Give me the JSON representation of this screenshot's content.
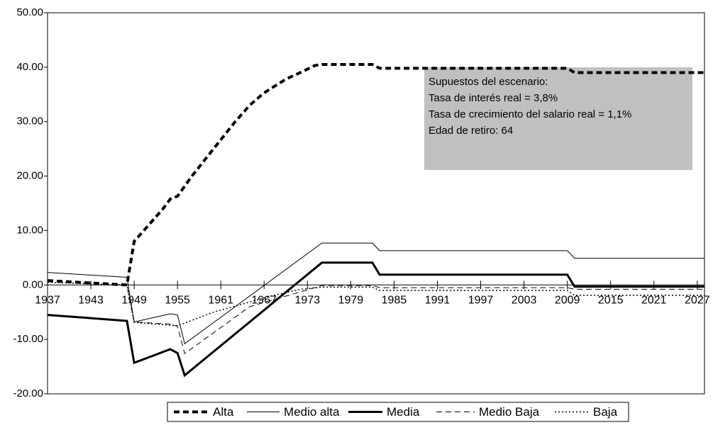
{
  "chart_data": {
    "type": "line",
    "xlim": [
      1937,
      2028
    ],
    "xticks": [
      1937,
      1943,
      1949,
      1955,
      1961,
      1967,
      1973,
      1979,
      1985,
      1991,
      1997,
      2003,
      2009,
      2015,
      2021,
      2027
    ],
    "ylim": [
      -20,
      50
    ],
    "yticks": [
      {
        "value": -20,
        "label": "-20.00"
      },
      {
        "value": -10,
        "label": "-10.00"
      },
      {
        "value": 0,
        "label": "0.00"
      },
      {
        "value": 10,
        "label": "10.00"
      },
      {
        "value": 20,
        "label": "20.00"
      },
      {
        "value": 30,
        "label": "30.00"
      },
      {
        "value": 40,
        "label": "40.00"
      },
      {
        "value": 50,
        "label": "50.00"
      }
    ],
    "annotation": [
      "Supuestos del escenario:",
      "Tasa de interés real  = 3,8%",
      "Tasa de crecimiento del salario real = 1,1%",
      "Edad de retiro: 64"
    ],
    "annotation_color": "#c0c0c0",
    "series": [
      {
        "name": "Alta",
        "color": "#000000",
        "line_style": "dashed",
        "line_width": 4,
        "x": [
          1937,
          1948,
          1949,
          1950,
          1953,
          1954,
          1955,
          1957,
          1960,
          1963,
          1965,
          1967,
          1970,
          1972,
          1974,
          1975,
          1982,
          1983,
          2009,
          2010,
          2028
        ],
        "values": [
          0.8,
          0,
          8,
          9.5,
          14,
          15.8,
          16.3,
          20,
          25,
          30,
          33,
          35.3,
          37.8,
          39,
          40.3,
          40.5,
          40.5,
          39.8,
          39.8,
          39,
          39
        ]
      },
      {
        "name": "Medio alta",
        "color": "#000000",
        "line_style": "solid",
        "line_width": 1,
        "x": [
          1937,
          1948,
          1949,
          1954,
          1955,
          1956,
          1975,
          1982,
          1983,
          2009,
          2010,
          2028
        ],
        "values": [
          2.3,
          1.4,
          -6.8,
          -5.3,
          -5.5,
          -10.8,
          7.7,
          7.7,
          6.3,
          6.3,
          4.9,
          4.9
        ]
      },
      {
        "name": "Media",
        "color": "#000000",
        "line_style": "solid",
        "line_width": 3,
        "x": [
          1937,
          1948,
          1949,
          1954,
          1955,
          1956,
          1975,
          1982,
          1983,
          2009,
          2010,
          2028
        ],
        "values": [
          -5.5,
          -6.6,
          -14.3,
          -11.8,
          -12.5,
          -16.6,
          4.1,
          4.1,
          1.9,
          1.9,
          -0.3,
          -0.3
        ]
      },
      {
        "name": "Medio Baja",
        "color": "#000000",
        "line_style": "dashed",
        "line_width": 1,
        "x": [
          1937,
          1948,
          1949,
          1954,
          1955,
          1956,
          1965,
          1975,
          1982,
          1983,
          2009,
          2010,
          2028
        ],
        "values": [
          0.6,
          -0.1,
          -6.8,
          -7.2,
          -7.6,
          -12.6,
          -4,
          -0.1,
          -0.1,
          -0.5,
          -0.5,
          -0.8,
          -0.8
        ]
      },
      {
        "name": "Baja",
        "color": "#000000",
        "line_style": "dotted",
        "line_width": 1.5,
        "x": [
          1937,
          1948,
          1949,
          1955,
          1960,
          1968,
          1972,
          1975,
          1982,
          1983,
          2009,
          2010,
          2028
        ],
        "values": [
          0.5,
          0,
          -6.9,
          -7.5,
          -5,
          -2,
          -0.8,
          -0.4,
          -0.4,
          -1,
          -1,
          -1.9,
          -1.9
        ]
      }
    ]
  }
}
